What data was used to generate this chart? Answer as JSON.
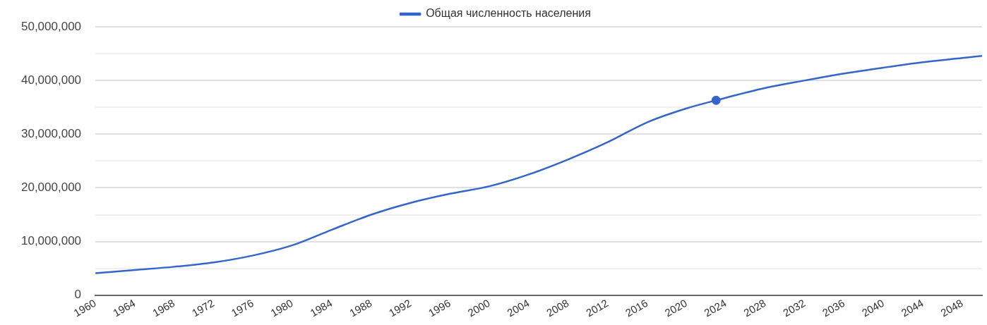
{
  "chart_data": {
    "type": "line",
    "legend": "top",
    "grid": "y",
    "marker": "none",
    "line_style": "solid",
    "xlim": [
      1960,
      2050
    ],
    "xticks": [
      1960,
      1964,
      1968,
      1972,
      1976,
      1980,
      1984,
      1988,
      1992,
      1996,
      2000,
      2004,
      2008,
      2012,
      2016,
      2020,
      2024,
      2028,
      2032,
      2036,
      2040,
      2044,
      2048
    ],
    "ylim": [
      0,
      50000000
    ],
    "yticks": [
      {
        "value": 0,
        "label": "0"
      },
      {
        "value": 5000000,
        "label": null
      },
      {
        "value": 10000000,
        "label": "10,000,000"
      },
      {
        "value": 15000000,
        "label": null
      },
      {
        "value": 20000000,
        "label": "20,000,000"
      },
      {
        "value": 25000000,
        "label": null
      },
      {
        "value": 30000000,
        "label": "30,000,000"
      },
      {
        "value": 35000000,
        "label": null
      },
      {
        "value": 40000000,
        "label": "40,000,000"
      },
      {
        "value": 45000000,
        "label": null
      },
      {
        "value": 50000000,
        "label": "50,000,000"
      }
    ],
    "series": [
      {
        "name": "Общая численность населения",
        "color": "#3366cc",
        "x": [
          1960,
          1964,
          1968,
          1972,
          1976,
          1980,
          1984,
          1988,
          1992,
          1996,
          2000,
          2004,
          2008,
          2012,
          2016,
          2020,
          2023,
          2028,
          2032,
          2036,
          2040,
          2044,
          2048,
          2050
        ],
        "values": [
          4100000,
          4700000,
          5300000,
          6100000,
          7400000,
          9300000,
          12200000,
          15000000,
          17200000,
          18900000,
          20300000,
          22500000,
          25300000,
          28500000,
          32200000,
          34800000,
          36300000,
          38600000,
          40000000,
          41300000,
          42400000,
          43400000,
          44200000,
          44600000
        ]
      },
      {
        "type": "scatter",
        "marker": "circle",
        "color": "#3366cc",
        "x": [
          2023
        ],
        "values": [
          36300000
        ]
      }
    ]
  }
}
